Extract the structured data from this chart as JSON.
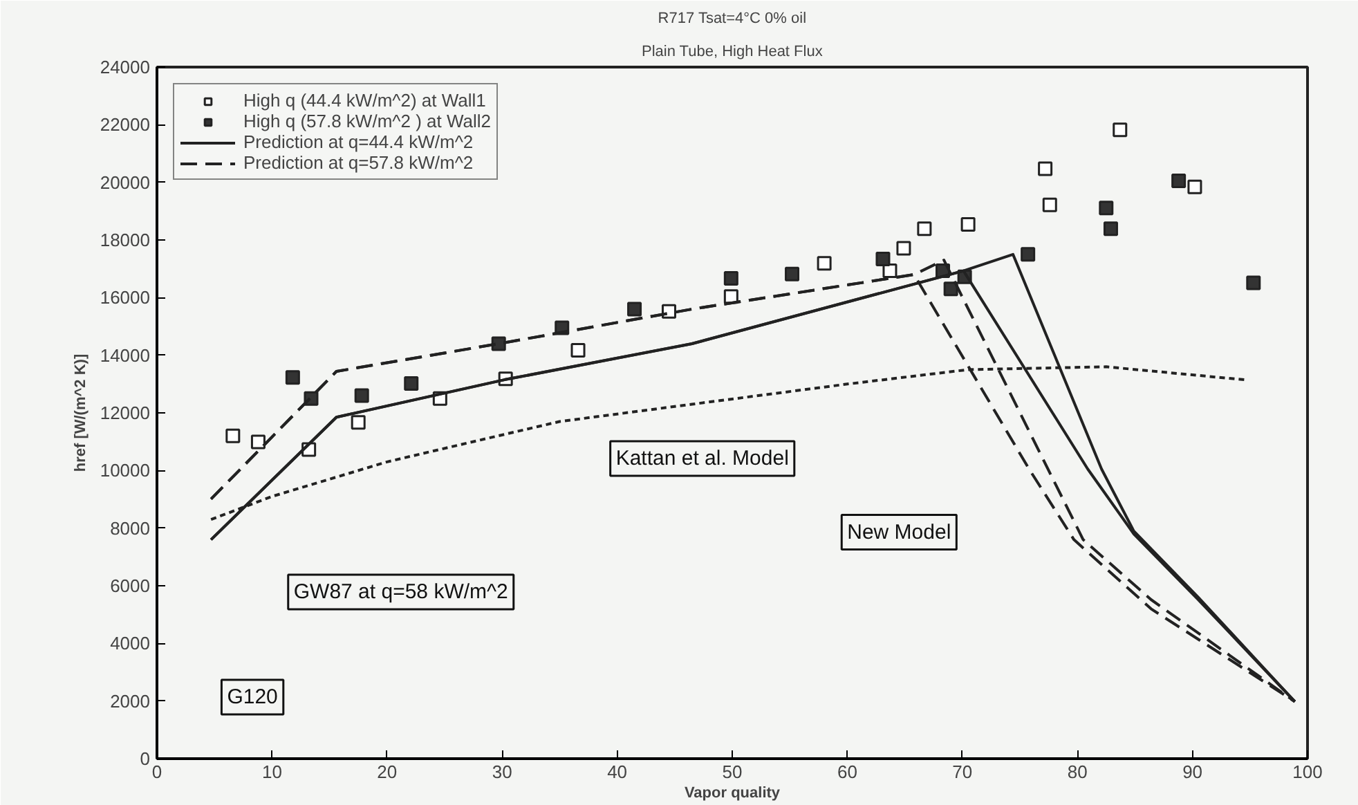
{
  "chart_data": {
    "type": "line",
    "title": "R717 Tsat=4°C 0% oil",
    "subtitle": "Plain Tube, High Heat Flux",
    "xlabel": "Vapor quality",
    "ylabel": "href [W/(m^2 K)]",
    "xlim": [
      0,
      100
    ],
    "ylim": [
      0,
      24000
    ],
    "xticks": [
      0,
      10,
      20,
      30,
      40,
      50,
      60,
      70,
      80,
      90,
      100
    ],
    "yticks": [
      0,
      2000,
      4000,
      6000,
      8000,
      10000,
      12000,
      14000,
      16000,
      18000,
      20000,
      22000,
      24000
    ],
    "grid": false,
    "legend": "top left",
    "series": [
      {
        "name": "High q (44.4 kW/m^2) at Wall1",
        "type": "scatter",
        "marker": "square",
        "color": "#ffffff",
        "x": [
          6.6,
          8.8,
          13.2,
          17.5,
          24.6,
          30.3,
          36.6,
          44.5,
          49.9,
          58,
          63.7,
          64.9,
          66.7,
          70.5,
          77.2,
          77.6,
          83.7,
          90.2
        ],
        "values": [
          11200,
          10990,
          10730,
          11670,
          12500,
          13180,
          14170,
          15520,
          16040,
          17190,
          16930,
          17710,
          18390,
          18540,
          20470,
          19220,
          21820,
          19840
        ]
      },
      {
        "name": "High q (57.8 kW/m^2 ) at Wall2",
        "type": "scatter",
        "marker": "square",
        "color": "#333333",
        "x": [
          11.8,
          13.4,
          17.8,
          22.1,
          29.7,
          35.2,
          41.5,
          49.9,
          55.2,
          63.1,
          68.3,
          69,
          70.2,
          75.7,
          82.5,
          82.9,
          88.8,
          95.3
        ],
        "values": [
          13230,
          12500,
          12600,
          13020,
          14400,
          14950,
          15600,
          16670,
          16820,
          17340,
          16930,
          16300,
          16720,
          17500,
          19110,
          18390,
          20050,
          16510
        ]
      },
      {
        "name": "Prediction at q=44.4 kW/m^2",
        "line_style": "solid",
        "color": "#222222",
        "x": [
          4.7,
          15.6,
          30.2,
          46.5,
          70.1,
          80.9,
          84.9,
          90.5,
          98.9
        ],
        "values": [
          7600,
          11850,
          13150,
          14400,
          16930,
          10050,
          7800,
          5520,
          1980
        ]
      },
      {
        "line_style": "solid",
        "color": "#222222",
        "x": [
          4.7,
          15.6,
          30.2,
          46.5,
          70.1,
          74.4,
          82.1,
          84.9,
          90.5,
          98.9
        ],
        "values": [
          7600,
          11850,
          13150,
          14400,
          16930,
          17500,
          10050,
          7900,
          5600,
          1980
        ]
      },
      {
        "name": "Prediction at q=57.8 kW/m^2",
        "line_style": "dashed",
        "color": "#222222",
        "x": [
          4.7,
          15.6,
          29.7,
          46.5,
          65.8,
          75.8,
          79.7,
          86.4,
          98.9
        ],
        "values": [
          9010,
          13440,
          14400,
          15600,
          16800,
          10050,
          7600,
          5200,
          1980
        ]
      },
      {
        "line_style": "dashed",
        "color": "#222222",
        "x": [
          4.7,
          15.6,
          29.7,
          46.5,
          65.8,
          68.4,
          80.5,
          86.4,
          98.9
        ],
        "values": [
          9010,
          13440,
          14400,
          15600,
          16800,
          17300,
          7600,
          5520,
          1980
        ]
      },
      {
        "line_style": "dotted",
        "color": "#222222",
        "x": [
          4.7,
          10,
          20,
          26.4,
          35,
          46.5,
          60,
          70.5,
          82.5,
          94.5
        ],
        "values": [
          8300,
          9100,
          10300,
          10900,
          11700,
          12300,
          13000,
          13500,
          13600,
          13150
        ]
      }
    ],
    "annotations": [
      "Kattan et al. Model",
      "New Model",
      "GW87 at q=58 kW/m^2",
      "G120"
    ]
  }
}
